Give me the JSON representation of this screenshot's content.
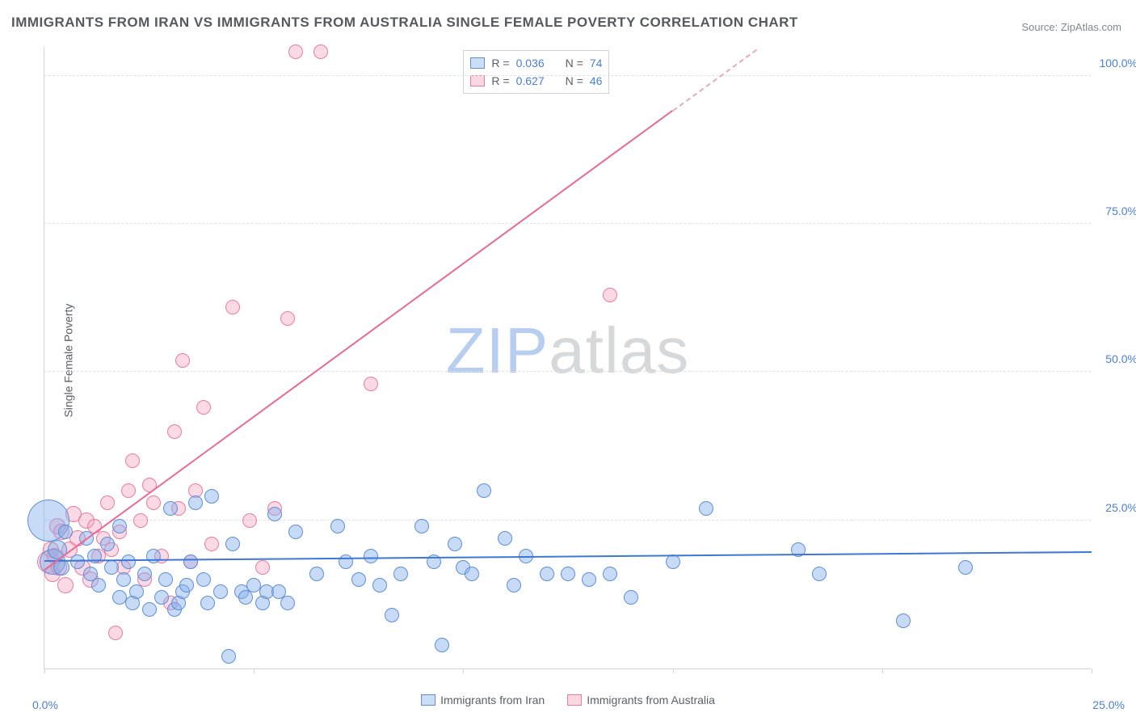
{
  "title": "IMMIGRANTS FROM IRAN VS IMMIGRANTS FROM AUSTRALIA SINGLE FEMALE POVERTY CORRELATION CHART",
  "source": "Source: ZipAtlas.com",
  "y_axis_label": "Single Female Poverty",
  "watermark_zip": "ZIP",
  "watermark_atlas": "atlas",
  "chart": {
    "type": "scatter",
    "xlim": [
      0,
      25
    ],
    "ylim": [
      0,
      105
    ],
    "x_origin_label": "0.0%",
    "x_end_label": "25.0%",
    "y_ticks": [
      25,
      50,
      75,
      100
    ],
    "y_tick_labels": [
      "25.0%",
      "50.0%",
      "75.0%",
      "100.0%"
    ],
    "x_tick_positions": [
      0,
      5,
      10,
      15,
      20,
      25
    ],
    "background_color": "#ffffff",
    "grid_color": "#dde1e6",
    "axis_color": "#cfd4da",
    "point_radius": 8,
    "series": {
      "iran": {
        "label": "Immigrants from Iran",
        "color_fill": "rgba(130,175,235,0.45)",
        "color_stroke": "#5e8fd8",
        "R": "0.036",
        "N": "74",
        "trend": {
          "x1": 0,
          "y1": 18.0,
          "x2": 25,
          "y2": 19.5,
          "color": "#3d78d6"
        },
        "points": [
          [
            0.1,
            25,
            26
          ],
          [
            0.2,
            18,
            16
          ],
          [
            0.3,
            20,
            12
          ],
          [
            0.4,
            17,
            10
          ],
          [
            0.5,
            23,
            9
          ],
          [
            0.8,
            18,
            9
          ],
          [
            1.0,
            22,
            9
          ],
          [
            1.1,
            16,
            9
          ],
          [
            1.2,
            19,
            9
          ],
          [
            1.3,
            14,
            9
          ],
          [
            1.5,
            21,
            9
          ],
          [
            1.6,
            17,
            9
          ],
          [
            1.8,
            12,
            9
          ],
          [
            1.8,
            24,
            9
          ],
          [
            1.9,
            15,
            9
          ],
          [
            2.0,
            18,
            9
          ],
          [
            2.1,
            11,
            9
          ],
          [
            2.2,
            13,
            9
          ],
          [
            2.4,
            16,
            9
          ],
          [
            2.5,
            10,
            9
          ],
          [
            2.6,
            19,
            9
          ],
          [
            2.8,
            12,
            9
          ],
          [
            2.9,
            15,
            9
          ],
          [
            3.0,
            27,
            9
          ],
          [
            3.1,
            10,
            9
          ],
          [
            3.2,
            11,
            9
          ],
          [
            3.3,
            13,
            9
          ],
          [
            3.4,
            14,
            9
          ],
          [
            3.5,
            18,
            9
          ],
          [
            3.6,
            28,
            9
          ],
          [
            3.8,
            15,
            9
          ],
          [
            3.9,
            11,
            9
          ],
          [
            4.0,
            29,
            9
          ],
          [
            4.2,
            13,
            9
          ],
          [
            4.4,
            2,
            9
          ],
          [
            4.5,
            21,
            9
          ],
          [
            4.7,
            13,
            9
          ],
          [
            4.8,
            12,
            9
          ],
          [
            5.0,
            14,
            9
          ],
          [
            5.2,
            11,
            9
          ],
          [
            5.3,
            13,
            9
          ],
          [
            5.5,
            26,
            9
          ],
          [
            5.6,
            13,
            9
          ],
          [
            5.8,
            11,
            9
          ],
          [
            6.0,
            23,
            9
          ],
          [
            6.5,
            16,
            9
          ],
          [
            7.0,
            24,
            9
          ],
          [
            7.2,
            18,
            9
          ],
          [
            7.5,
            15,
            9
          ],
          [
            7.8,
            19,
            9
          ],
          [
            8.0,
            14,
            9
          ],
          [
            8.3,
            9,
            9
          ],
          [
            8.5,
            16,
            9
          ],
          [
            9.0,
            24,
            9
          ],
          [
            9.3,
            18,
            9
          ],
          [
            9.5,
            4,
            9
          ],
          [
            9.8,
            21,
            9
          ],
          [
            10.0,
            17,
            9
          ],
          [
            10.2,
            16,
            9
          ],
          [
            10.5,
            30,
            9
          ],
          [
            11.0,
            22,
            9
          ],
          [
            11.2,
            14,
            9
          ],
          [
            11.5,
            19,
            9
          ],
          [
            12.0,
            16,
            9
          ],
          [
            12.5,
            16,
            9
          ],
          [
            13.0,
            15,
            9
          ],
          [
            13.5,
            16,
            9
          ],
          [
            14.0,
            12,
            9
          ],
          [
            15.0,
            18,
            9
          ],
          [
            15.8,
            27,
            9
          ],
          [
            18.0,
            20,
            9
          ],
          [
            18.5,
            16,
            9
          ],
          [
            20.5,
            8,
            9
          ],
          [
            22.0,
            17,
            9
          ]
        ]
      },
      "australia": {
        "label": "Immigrants from Australia",
        "color_fill": "rgba(245,160,190,0.40)",
        "color_stroke": "#e87ca0",
        "R": "0.627",
        "N": "46",
        "trend_solid": {
          "x1": 0,
          "y1": 16.5,
          "x2": 15.0,
          "y2": 94,
          "color": "#e96a95"
        },
        "trend_dashed": {
          "x1": 15.0,
          "y1": 94,
          "x2": 17.0,
          "y2": 104.3,
          "color": "#e9a8be"
        },
        "points": [
          [
            0.1,
            18,
            14
          ],
          [
            0.15,
            20,
            10
          ],
          [
            0.2,
            16,
            10
          ],
          [
            0.25,
            19,
            10
          ],
          [
            0.3,
            24,
            10
          ],
          [
            0.35,
            17,
            10
          ],
          [
            0.4,
            23,
            10
          ],
          [
            0.5,
            14,
            10
          ],
          [
            0.6,
            20,
            10
          ],
          [
            0.7,
            26,
            10
          ],
          [
            0.8,
            22,
            10
          ],
          [
            0.9,
            17,
            10
          ],
          [
            1.0,
            25,
            10
          ],
          [
            1.1,
            15,
            10
          ],
          [
            1.2,
            24,
            9
          ],
          [
            1.3,
            19,
            9
          ],
          [
            1.4,
            22,
            9
          ],
          [
            1.5,
            28,
            9
          ],
          [
            1.6,
            20,
            9
          ],
          [
            1.7,
            6,
            9
          ],
          [
            1.8,
            23,
            9
          ],
          [
            1.9,
            17,
            9
          ],
          [
            2.0,
            30,
            9
          ],
          [
            2.1,
            35,
            9
          ],
          [
            2.3,
            25,
            9
          ],
          [
            2.4,
            15,
            9
          ],
          [
            2.5,
            31,
            9
          ],
          [
            2.6,
            28,
            9
          ],
          [
            2.8,
            19,
            9
          ],
          [
            3.0,
            11,
            9
          ],
          [
            3.1,
            40,
            9
          ],
          [
            3.2,
            27,
            9
          ],
          [
            3.3,
            52,
            9
          ],
          [
            3.5,
            18,
            9
          ],
          [
            3.6,
            30,
            9
          ],
          [
            3.8,
            44,
            9
          ],
          [
            4.0,
            21,
            9
          ],
          [
            4.5,
            61,
            9
          ],
          [
            4.9,
            25,
            9
          ],
          [
            5.2,
            17,
            9
          ],
          [
            5.5,
            27,
            9
          ],
          [
            5.8,
            59,
            9
          ],
          [
            6.0,
            104,
            9
          ],
          [
            6.6,
            104,
            9
          ],
          [
            7.8,
            48,
            9
          ],
          [
            13.5,
            63,
            9
          ]
        ]
      }
    }
  },
  "legend_top": {
    "R_label": "R =",
    "N_label": "N ="
  },
  "legend_bottom": {
    "iran": "Immigrants from Iran",
    "australia": "Immigrants from Australia"
  }
}
